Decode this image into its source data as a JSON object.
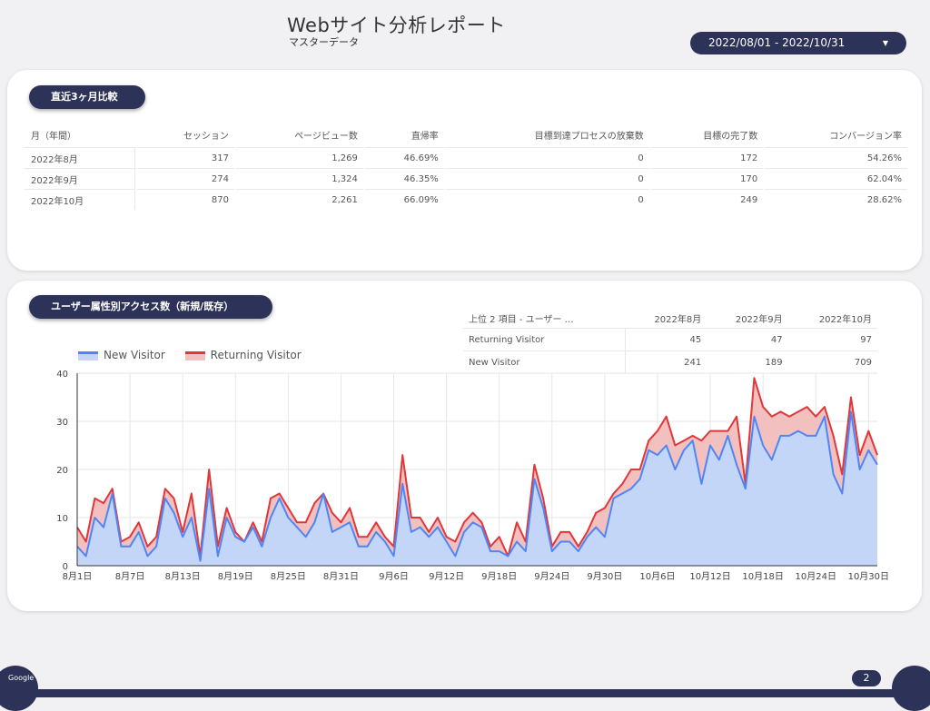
{
  "header": {
    "title": "Webサイト分析レポート",
    "subtitle": "マスターデータ",
    "date_range": "2022/08/01 - 2022/10/31"
  },
  "section1": {
    "title": "直近3ヶ月比較",
    "columns": [
      "月（年間）",
      "セッション",
      "ページビュー数",
      "直帰率",
      "目標到達プロセスの放棄数",
      "目標の完了数",
      "コンバージョン率"
    ],
    "rows": [
      [
        "2022年8月",
        "317",
        "1,269",
        "46.69%",
        "0",
        "172",
        "54.26%"
      ],
      [
        "2022年9月",
        "274",
        "1,324",
        "46.35%",
        "0",
        "170",
        "62.04%"
      ],
      [
        "2022年10月",
        "870",
        "2,261",
        "66.09%",
        "0",
        "249",
        "28.62%"
      ]
    ]
  },
  "section2": {
    "title": "ユーザー属性別アクセス数（新規/既存）",
    "table": {
      "columns": [
        "上位 2 項目 - ユーザー …",
        "2022年8月",
        "2022年9月",
        "2022年10月"
      ],
      "rows": [
        [
          "Returning Visitor",
          "45",
          "47",
          "97"
        ],
        [
          "New Visitor",
          "241",
          "189",
          "709"
        ]
      ]
    }
  },
  "chart_data": {
    "type": "area",
    "stacked": true,
    "ylim": [
      0,
      40
    ],
    "yticks": [
      0,
      10,
      20,
      30,
      40
    ],
    "xtick_labels": [
      "8月1日",
      "8月7日",
      "8月13日",
      "8月19日",
      "8月25日",
      "8月31日",
      "9月6日",
      "9月12日",
      "9月18日",
      "9月24日",
      "9月30日",
      "10月6日",
      "10月12日",
      "10月18日",
      "10月24日",
      "10月30日"
    ],
    "xtick_every": 6,
    "legend_position": "top-left",
    "grid": true,
    "series": [
      {
        "name": "New Visitor",
        "color": "#4f86f7",
        "fill": "#c4d6f7",
        "values": [
          4,
          2,
          10,
          8,
          15,
          4,
          4,
          7,
          2,
          4,
          14,
          11,
          6,
          10,
          1,
          16,
          2,
          10,
          6,
          5,
          8,
          4,
          10,
          14,
          10,
          8,
          6,
          9,
          15,
          7,
          8,
          9,
          4,
          4,
          7,
          5,
          2,
          17,
          7,
          8,
          6,
          8,
          5,
          2,
          7,
          9,
          8,
          3,
          3,
          2,
          5,
          3,
          18,
          12,
          3,
          5,
          5,
          3,
          6,
          8,
          6,
          14,
          15,
          16,
          18,
          24,
          23,
          25,
          20,
          24,
          26,
          17,
          25,
          22,
          27,
          21,
          16,
          31,
          25,
          22,
          27,
          27,
          28,
          27,
          27,
          31,
          19,
          15,
          32,
          20,
          24,
          21
        ]
      },
      {
        "name": "Returning Visitor",
        "color": "#e0373a",
        "fill": "#f2c0bf",
        "values": [
          4,
          3,
          4,
          5,
          1,
          1,
          2,
          2,
          2,
          2,
          2,
          3,
          1,
          5,
          1,
          4,
          2,
          2,
          1,
          0,
          1,
          1,
          4,
          1,
          2,
          1,
          3,
          4,
          0,
          4,
          1,
          3,
          2,
          2,
          2,
          1,
          2,
          6,
          3,
          2,
          1,
          2,
          1,
          3,
          2,
          2,
          1,
          1,
          3,
          0,
          4,
          2,
          3,
          2,
          1,
          2,
          2,
          1,
          1,
          3,
          6,
          1,
          2,
          4,
          2,
          2,
          5,
          6,
          5,
          2,
          1,
          9,
          3,
          6,
          1,
          10,
          1,
          8,
          8,
          9,
          5,
          4,
          4,
          6,
          4,
          2,
          8,
          4,
          3,
          3,
          4,
          2
        ]
      }
    ]
  },
  "footer": {
    "logo_text": "Google",
    "page_number": "2"
  }
}
